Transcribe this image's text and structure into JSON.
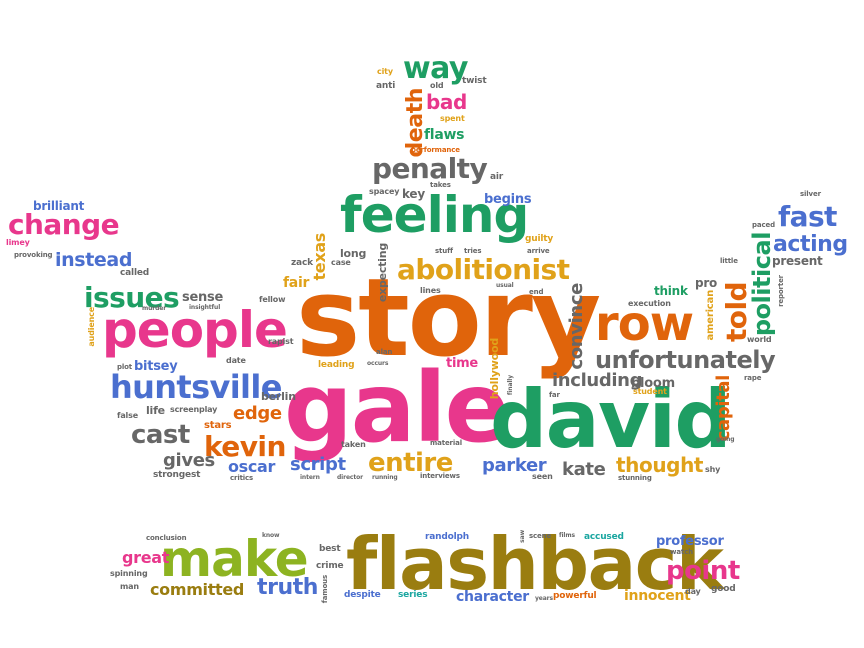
{
  "colors": {
    "pink": "#e8378c",
    "green": "#1e9e63",
    "orange": "#e0640b",
    "gold": "#e0a21a",
    "olive": "#9a7d10",
    "blue": "#4b6fcf",
    "gray": "#676767",
    "lime": "#8db321",
    "purple": "#8a4fd1",
    "teal": "#1aa6a0"
  },
  "words": [
    {
      "text": "story",
      "color": "orange"
    },
    {
      "text": "gale",
      "color": "pink"
    },
    {
      "text": "david",
      "color": "green"
    },
    {
      "text": "flashback",
      "color": "olive"
    },
    {
      "text": "people",
      "color": "pink"
    },
    {
      "text": "feeling",
      "color": "green"
    },
    {
      "text": "row",
      "color": "orange"
    },
    {
      "text": "make",
      "color": "lime"
    },
    {
      "text": "huntsville",
      "color": "blue"
    },
    {
      "text": "unfortunately",
      "color": "gray"
    },
    {
      "text": "abolitionist",
      "color": "gold"
    },
    {
      "text": "penalty",
      "color": "gray"
    },
    {
      "text": "way",
      "color": "green"
    },
    {
      "text": "change",
      "color": "pink"
    },
    {
      "text": "fast",
      "color": "blue"
    },
    {
      "text": "acting",
      "color": "blue"
    },
    {
      "text": "issues",
      "color": "green"
    },
    {
      "text": "told",
      "color": "orange"
    },
    {
      "text": "political",
      "color": "green"
    },
    {
      "text": "kevin",
      "color": "orange"
    },
    {
      "text": "cast",
      "color": "gray"
    },
    {
      "text": "entire",
      "color": "gold"
    },
    {
      "text": "point",
      "color": "pink"
    },
    {
      "text": "death",
      "color": "orange"
    },
    {
      "text": "bad",
      "color": "pink"
    },
    {
      "text": "instead",
      "color": "blue"
    },
    {
      "text": "convince",
      "color": "gray"
    },
    {
      "text": "including",
      "color": "gray"
    },
    {
      "text": "capital",
      "color": "orange"
    },
    {
      "text": "truth",
      "color": "blue"
    },
    {
      "text": "committed",
      "color": "olive"
    },
    {
      "text": "thought",
      "color": "gold"
    },
    {
      "text": "parker",
      "color": "blue"
    },
    {
      "text": "kate",
      "color": "gray"
    },
    {
      "text": "script",
      "color": "blue"
    },
    {
      "text": "gives",
      "color": "gray"
    },
    {
      "text": "edge",
      "color": "orange"
    },
    {
      "text": "oscar",
      "color": "blue"
    },
    {
      "text": "character",
      "color": "blue"
    },
    {
      "text": "professor",
      "color": "blue"
    },
    {
      "text": "innocent",
      "color": "gold"
    },
    {
      "text": "great",
      "color": "pink"
    },
    {
      "text": "texas",
      "color": "gold"
    },
    {
      "text": "flaws",
      "color": "green"
    },
    {
      "text": "begins",
      "color": "blue"
    },
    {
      "text": "bloom",
      "color": "gray"
    },
    {
      "text": "sense",
      "color": "gray"
    },
    {
      "text": "brilliant",
      "color": "blue"
    },
    {
      "text": "bitsey",
      "color": "blue"
    },
    {
      "text": "time",
      "color": "pink"
    },
    {
      "text": "life",
      "color": "gray"
    },
    {
      "text": "berlin",
      "color": "gray"
    },
    {
      "text": "key",
      "color": "gray"
    },
    {
      "text": "long",
      "color": "gray"
    },
    {
      "text": "fair",
      "color": "gold"
    },
    {
      "text": "expecting",
      "color": "gray"
    },
    {
      "text": "hollywood",
      "color": "gold"
    },
    {
      "text": "think",
      "color": "green"
    },
    {
      "text": "present",
      "color": "gray"
    },
    {
      "text": "pro",
      "color": "gray"
    },
    {
      "text": "american",
      "color": "gold"
    },
    {
      "text": "stars",
      "color": "orange"
    },
    {
      "text": "powerful",
      "color": "orange"
    },
    {
      "text": "despite",
      "color": "blue"
    },
    {
      "text": "series",
      "color": "teal"
    },
    {
      "text": "randolph",
      "color": "blue"
    },
    {
      "text": "accused",
      "color": "teal"
    },
    {
      "text": "best",
      "color": "gray"
    },
    {
      "text": "crime",
      "color": "gray"
    },
    {
      "text": "leading",
      "color": "gold"
    },
    {
      "text": "twist",
      "color": "gray"
    },
    {
      "text": "city",
      "color": "gold"
    },
    {
      "text": "anti",
      "color": "gray"
    },
    {
      "text": "old",
      "color": "gray"
    },
    {
      "text": "spent",
      "color": "gold"
    },
    {
      "text": "performance",
      "color": "orange"
    },
    {
      "text": "air",
      "color": "gray"
    },
    {
      "text": "spacey",
      "color": "gray"
    },
    {
      "text": "takes",
      "color": "gray"
    },
    {
      "text": "zack",
      "color": "gray"
    },
    {
      "text": "case",
      "color": "gray"
    },
    {
      "text": "stuff",
      "color": "gray"
    },
    {
      "text": "tries",
      "color": "gray"
    },
    {
      "text": "guilty",
      "color": "gold"
    },
    {
      "text": "arrive",
      "color": "gray"
    },
    {
      "text": "lines",
      "color": "gray"
    },
    {
      "text": "usual",
      "color": "gray"
    },
    {
      "text": "end",
      "color": "gray"
    },
    {
      "text": "called",
      "color": "gray"
    },
    {
      "text": "provoking",
      "color": "gray"
    },
    {
      "text": "limey",
      "color": "pink"
    },
    {
      "text": "murder",
      "color": "gray"
    },
    {
      "text": "insightful",
      "color": "gray"
    },
    {
      "text": "audience",
      "color": "gold"
    },
    {
      "text": "fellow",
      "color": "gray"
    },
    {
      "text": "rapist",
      "color": "gray"
    },
    {
      "text": "plot",
      "color": "gray"
    },
    {
      "text": "date",
      "color": "gray"
    },
    {
      "text": "alan",
      "color": "gray"
    },
    {
      "text": "screenplay",
      "color": "gray"
    },
    {
      "text": "false",
      "color": "gray"
    },
    {
      "text": "occurs",
      "color": "gray"
    },
    {
      "text": "finally",
      "color": "gray"
    },
    {
      "text": "far",
      "color": "gray"
    },
    {
      "text": "student",
      "color": "gold"
    },
    {
      "text": "execution",
      "color": "gray"
    },
    {
      "text": "reporter",
      "color": "gray"
    },
    {
      "text": "world",
      "color": "gray"
    },
    {
      "text": "rape",
      "color": "gray"
    },
    {
      "text": "going",
      "color": "gray"
    },
    {
      "text": "shy",
      "color": "gray"
    },
    {
      "text": "stunning",
      "color": "gray"
    },
    {
      "text": "interviews",
      "color": "gray"
    },
    {
      "text": "seen",
      "color": "gray"
    },
    {
      "text": "material",
      "color": "gray"
    },
    {
      "text": "taken",
      "color": "gray"
    },
    {
      "text": "director",
      "color": "gray"
    },
    {
      "text": "running",
      "color": "gray"
    },
    {
      "text": "intern",
      "color": "gray"
    },
    {
      "text": "critics",
      "color": "gray"
    },
    {
      "text": "strongest",
      "color": "gray"
    },
    {
      "text": "silver",
      "color": "gray"
    },
    {
      "text": "paced",
      "color": "gray"
    },
    {
      "text": "little",
      "color": "gray"
    },
    {
      "text": "conclusion",
      "color": "gray"
    },
    {
      "text": "know",
      "color": "gray"
    },
    {
      "text": "saw",
      "color": "gray"
    },
    {
      "text": "scene",
      "color": "gray"
    },
    {
      "text": "films",
      "color": "gray"
    },
    {
      "text": "spinning",
      "color": "gray"
    },
    {
      "text": "man",
      "color": "gray"
    },
    {
      "text": "watch",
      "color": "gray"
    },
    {
      "text": "famous",
      "color": "gray"
    },
    {
      "text": "years",
      "color": "gray"
    },
    {
      "text": "day",
      "color": "gray"
    },
    {
      "text": "good",
      "color": "gray"
    }
  ]
}
